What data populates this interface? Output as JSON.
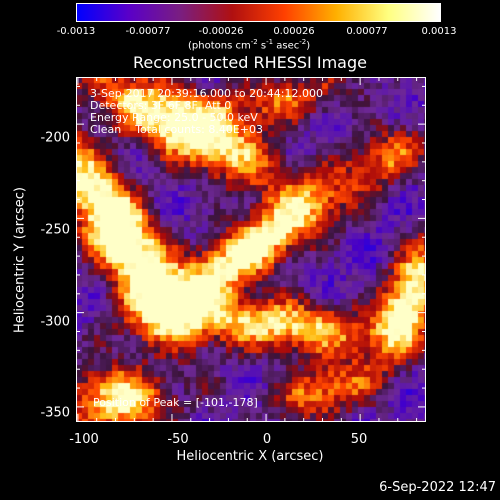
{
  "colorbar": {
    "ticks": [
      "-0.0013",
      "-0.00077",
      "-0.00026",
      "0.00026",
      "0.00077",
      "0.0013"
    ],
    "units_prefix": "(photons cm",
    "units_sup1": "-2",
    "units_mid1": " s",
    "units_sup2": "-1",
    "units_mid2": " asec",
    "units_sup3": "-2",
    "units_suffix": ")",
    "colors": [
      "#0000ff",
      "#5a00c8",
      "#7a1e80",
      "#b01010",
      "#ff4000",
      "#ffb000",
      "#ffff80",
      "#ffffff"
    ]
  },
  "chart_data": {
    "type": "heatmap",
    "title": "Reconstructed RHESSI Image",
    "xlabel": "Heliocentric X (arcsec)",
    "ylabel": "Heliocentric Y (arcsec)",
    "xlim": [
      -101,
      85
    ],
    "ylim": [
      -358,
      -175
    ],
    "xticks": [
      "-100",
      "-50",
      "0",
      "50"
    ],
    "yticks": [
      "-200",
      "-250",
      "-300",
      "-350"
    ],
    "info_lines": [
      "3-Sep-2017 20:39:16.000 to 20:44:12.000",
      "Detectors: 3F 6F 8F, Att 0",
      "Energy Range: 25.0 - 50.0 keV",
      "Clean    Total counts: 8.40E+03"
    ],
    "peak_label": "Position of Peak = [-101,-178]",
    "peak": [
      -101,
      -178
    ],
    "colorbar_range": [
      -0.0013,
      0.0013
    ]
  },
  "timestamp": "6-Sep-2022 12:47"
}
